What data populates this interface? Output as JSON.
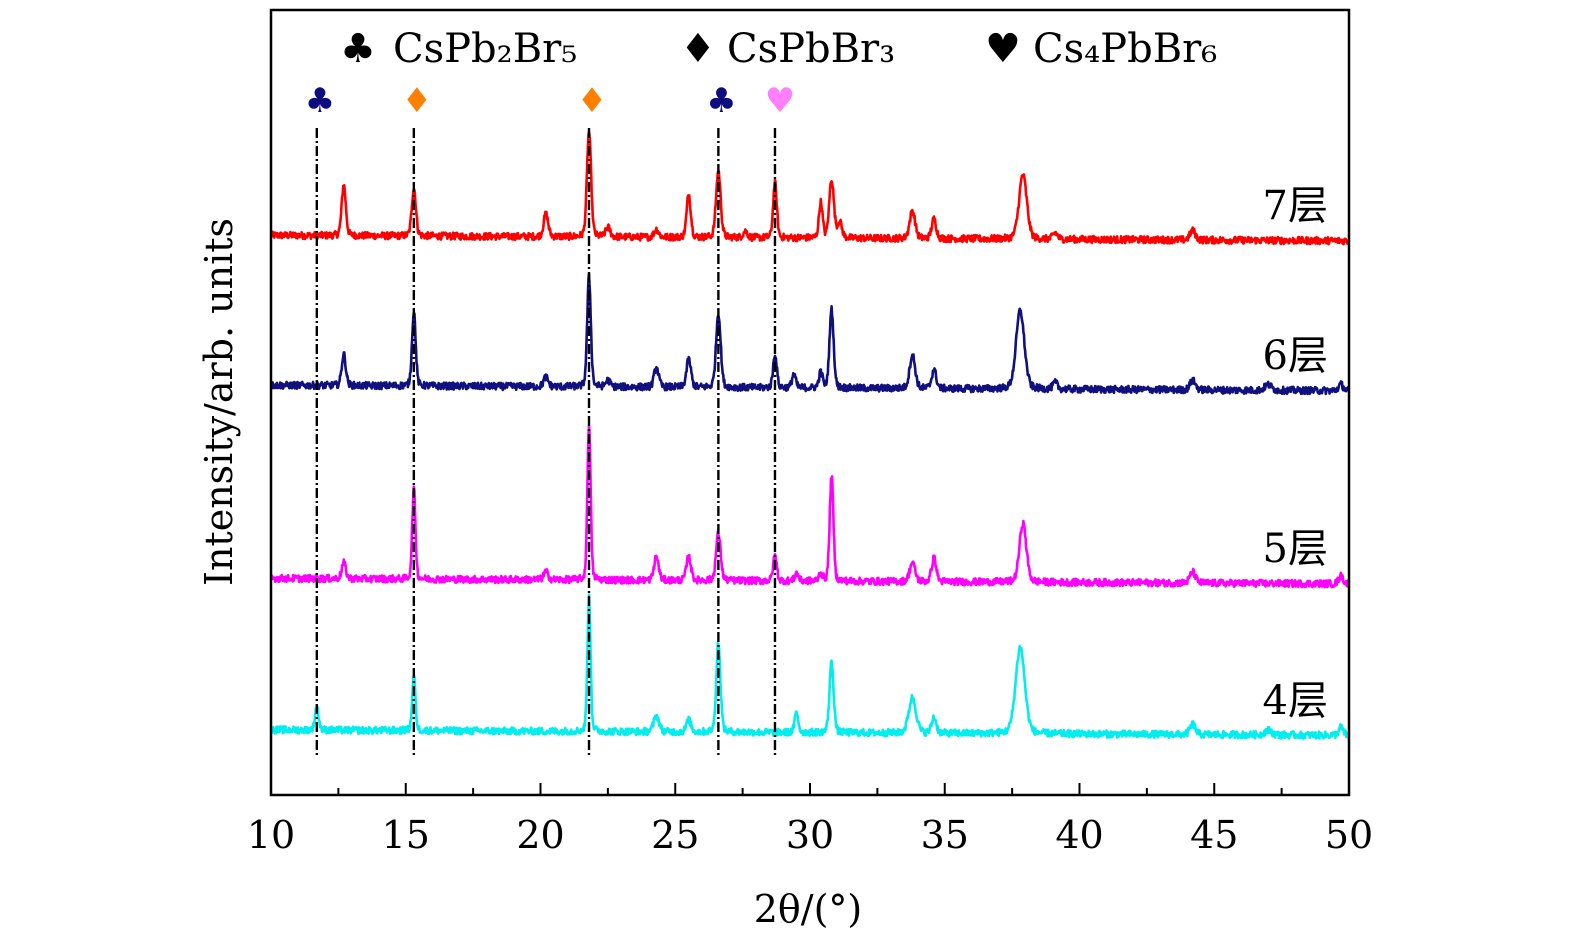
{
  "chart_data": {
    "type": "line",
    "title": "",
    "xlabel": "2θ/(°)",
    "ylabel": "Intensity/arb. units",
    "xlim": [
      10,
      50
    ],
    "ylim": [
      0,
      100
    ],
    "xticks": [
      10,
      15,
      20,
      25,
      30,
      35,
      40,
      45,
      50
    ],
    "xtick_labels": [
      "10",
      "15",
      "20",
      "25",
      "30",
      "35",
      "40",
      "45",
      "50"
    ],
    "minor_tick_step": 2.5,
    "grid": false,
    "legend_position": "top-center",
    "legend": [
      {
        "symbol": "♣",
        "name": "CsPb₂Br₅",
        "color": "#0d0d80"
      },
      {
        "symbol": "♦",
        "name": "CsPbBr₃",
        "color": "#ff8000"
      },
      {
        "symbol": "♥",
        "name": "Cs₄PbBr₆",
        "color": "#ff80ff"
      }
    ],
    "reference_lines": [
      {
        "x": 11.7,
        "symbol": "♣",
        "color": "#0d0d80"
      },
      {
        "x": 15.3,
        "symbol": "♦",
        "color": "#ff8000"
      },
      {
        "x": 21.8,
        "symbol": "♦",
        "color": "#ff8000"
      },
      {
        "x": 26.6,
        "symbol": "♣",
        "color": "#0d0d80"
      },
      {
        "x": 28.7,
        "symbol": "♥",
        "color": "#ff80ff"
      }
    ],
    "series": [
      {
        "name": "7层",
        "color": "#ff0000",
        "offset": 71.3,
        "peaks": [
          [
            12.7,
            6.5,
            0.09
          ],
          [
            15.3,
            6.1,
            0.09
          ],
          [
            20.2,
            2.9,
            0.1
          ],
          [
            21.8,
            13.4,
            0.09
          ],
          [
            22.5,
            1.2,
            0.1
          ],
          [
            24.3,
            1.0,
            0.1
          ],
          [
            25.5,
            5.5,
            0.09
          ],
          [
            26.6,
            8.5,
            0.1
          ],
          [
            27.6,
            0.8,
            0.1
          ],
          [
            28.7,
            7.0,
            0.08
          ],
          [
            30.4,
            4.5,
            0.08
          ],
          [
            30.8,
            7.5,
            0.1
          ],
          [
            31.1,
            2.0,
            0.1
          ],
          [
            33.8,
            3.5,
            0.12
          ],
          [
            34.6,
            2.5,
            0.1
          ],
          [
            37.9,
            8.2,
            0.17
          ],
          [
            39.1,
            0.8,
            0.1
          ],
          [
            44.2,
            1.2,
            0.12
          ]
        ]
      },
      {
        "name": "6层",
        "color": "#10107f",
        "offset": 52.2,
        "peaks": [
          [
            12.7,
            4.0,
            0.09
          ],
          [
            15.3,
            9.5,
            0.08
          ],
          [
            20.2,
            1.2,
            0.1
          ],
          [
            21.8,
            14.0,
            0.08
          ],
          [
            22.5,
            0.8,
            0.1
          ],
          [
            24.3,
            2.5,
            0.1
          ],
          [
            25.5,
            3.5,
            0.1
          ],
          [
            26.6,
            9.5,
            0.1
          ],
          [
            28.7,
            4.3,
            0.08
          ],
          [
            29.4,
            1.8,
            0.08
          ],
          [
            30.4,
            2.0,
            0.08
          ],
          [
            30.8,
            10.0,
            0.09
          ],
          [
            33.8,
            4.3,
            0.12
          ],
          [
            34.6,
            2.4,
            0.1
          ],
          [
            37.8,
            10.0,
            0.18
          ],
          [
            39.1,
            0.8,
            0.1
          ],
          [
            44.2,
            1.2,
            0.12
          ],
          [
            47.0,
            0.7,
            0.15
          ],
          [
            49.7,
            0.8,
            0.1
          ]
        ]
      },
      {
        "name": "5层",
        "color": "#ff00ff",
        "offset": 27.6,
        "peaks": [
          [
            12.7,
            2.0,
            0.09
          ],
          [
            15.3,
            11.5,
            0.07
          ],
          [
            20.2,
            1.0,
            0.1
          ],
          [
            21.8,
            20.0,
            0.07
          ],
          [
            24.3,
            3.0,
            0.1
          ],
          [
            25.5,
            3.0,
            0.1
          ],
          [
            26.6,
            6.0,
            0.1
          ],
          [
            28.7,
            3.2,
            0.08
          ],
          [
            29.5,
            1.0,
            0.08
          ],
          [
            30.4,
            1.0,
            0.08
          ],
          [
            30.8,
            13.5,
            0.08
          ],
          [
            33.8,
            2.4,
            0.12
          ],
          [
            34.6,
            3.0,
            0.1
          ],
          [
            37.9,
            7.5,
            0.15
          ],
          [
            44.2,
            1.4,
            0.12
          ],
          [
            49.7,
            1.0,
            0.1
          ]
        ]
      },
      {
        "name": "4层",
        "color": "#00eeee",
        "offset": 8.3,
        "peaks": [
          [
            11.7,
            3.0,
            0.08
          ],
          [
            15.3,
            7.0,
            0.07
          ],
          [
            21.8,
            17.0,
            0.07
          ],
          [
            24.3,
            2.0,
            0.12
          ],
          [
            25.5,
            1.5,
            0.1
          ],
          [
            26.6,
            11.5,
            0.09
          ],
          [
            29.5,
            2.5,
            0.08
          ],
          [
            30.8,
            9.0,
            0.09
          ],
          [
            33.8,
            4.5,
            0.16
          ],
          [
            34.6,
            2.0,
            0.1
          ],
          [
            37.8,
            11.0,
            0.2
          ],
          [
            44.2,
            1.3,
            0.12
          ],
          [
            47.0,
            0.6,
            0.15
          ],
          [
            49.7,
            1.0,
            0.1
          ]
        ]
      }
    ]
  }
}
